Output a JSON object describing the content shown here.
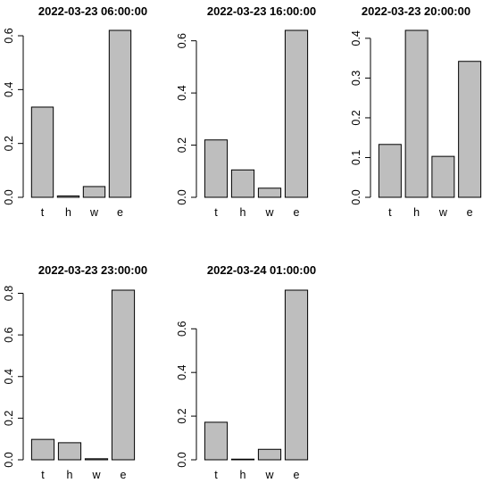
{
  "chart_data": [
    {
      "type": "bar",
      "title": "2022-03-23 06:00:00",
      "categories": [
        "t",
        "h",
        "w",
        "e"
      ],
      "values": [
        0.335,
        0.005,
        0.04,
        0.62
      ],
      "ylim": [
        0,
        0.62
      ],
      "yticks": [
        0.0,
        0.2,
        0.4,
        0.6
      ],
      "ytick_labels": [
        "0.0",
        "0.2",
        "0.4",
        "0.6"
      ],
      "grid": false
    },
    {
      "type": "bar",
      "title": "2022-03-23 16:00:00",
      "categories": [
        "t",
        "h",
        "w",
        "e"
      ],
      "values": [
        0.22,
        0.105,
        0.035,
        0.64
      ],
      "ylim": [
        0,
        0.64
      ],
      "yticks": [
        0.0,
        0.2,
        0.4,
        0.6
      ],
      "ytick_labels": [
        "0.0",
        "0.2",
        "0.4",
        "0.6"
      ],
      "grid": false
    },
    {
      "type": "bar",
      "title": "2022-03-23 20:00:00",
      "categories": [
        "t",
        "h",
        "w",
        "e"
      ],
      "values": [
        0.133,
        0.42,
        0.103,
        0.342
      ],
      "ylim": [
        0,
        0.42
      ],
      "yticks": [
        0.0,
        0.1,
        0.2,
        0.3,
        0.4
      ],
      "ytick_labels": [
        "0.0",
        "0.1",
        "0.2",
        "0.3",
        "0.4"
      ],
      "grid": false
    },
    {
      "type": "bar",
      "title": "2022-03-23 23:00:00",
      "categories": [
        "t",
        "h",
        "w",
        "e"
      ],
      "values": [
        0.098,
        0.082,
        0.005,
        0.815
      ],
      "ylim": [
        0,
        0.815
      ],
      "yticks": [
        0.0,
        0.2,
        0.4,
        0.6,
        0.8
      ],
      "ytick_labels": [
        "0.0",
        "0.2",
        "0.4",
        "0.6",
        "0.8"
      ],
      "grid": false
    },
    {
      "type": "bar",
      "title": "2022-03-24 01:00:00",
      "categories": [
        "t",
        "h",
        "w",
        "e"
      ],
      "values": [
        0.172,
        0.003,
        0.048,
        0.777
      ],
      "ylim": [
        0,
        0.777
      ],
      "yticks": [
        0.0,
        0.2,
        0.4,
        0.6
      ],
      "ytick_labels": [
        "0.0",
        "0.2",
        "0.4",
        "0.6"
      ],
      "grid": false
    }
  ]
}
